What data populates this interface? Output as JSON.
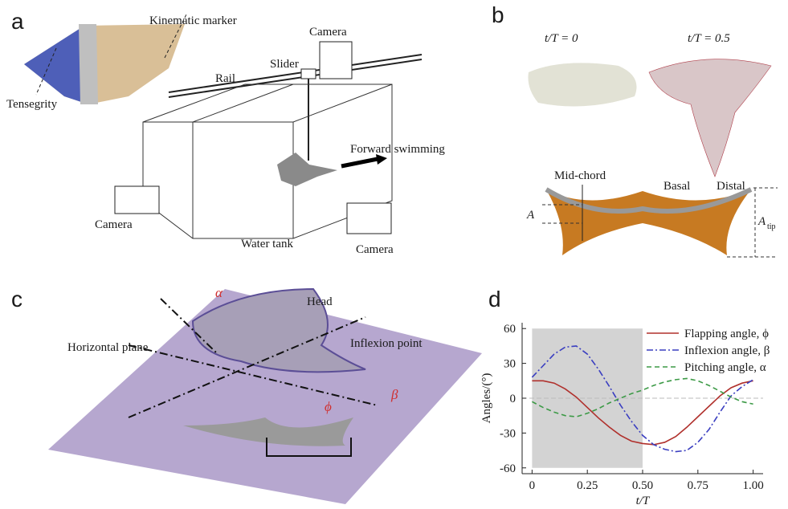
{
  "panels": {
    "a": {
      "label": "a",
      "kinematic_marker": "Kinematic marker",
      "tensegrity": "Tensegrity",
      "camera_top": "Camera",
      "slider": "Slider",
      "rail": "Rail",
      "forward": "Forward swimming",
      "camera_left": "Camera",
      "water_tank": "Water tank",
      "camera_bottom": "Camera"
    },
    "b": {
      "label": "b",
      "t0": "t/T = 0",
      "t05": "t/T = 0.5",
      "mid_chord": "Mid-chord",
      "basal": "Basal",
      "distal": "Distal",
      "a": "A",
      "a_tip": "A",
      "a_tip_sub": "tip"
    },
    "c": {
      "label": "c",
      "alpha": "α",
      "head": "Head",
      "horizontal_plane": "Horizontal plane",
      "inflexion_point": "Inflexion point",
      "phi": "ϕ",
      "beta": "β"
    },
    "d": {
      "label": "d"
    }
  },
  "chart_data": {
    "type": "line",
    "y_label": "Angles/(°)",
    "x_label": "t/T",
    "x": [
      0,
      0.05,
      0.1,
      0.15,
      0.2,
      0.25,
      0.3,
      0.35,
      0.4,
      0.45,
      0.5,
      0.55,
      0.6,
      0.65,
      0.7,
      0.75,
      0.8,
      0.85,
      0.9,
      0.95,
      1
    ],
    "series": [
      {
        "name": "Flapping angle, ϕ",
        "color": "#b0302c",
        "dash": "solid",
        "values": [
          15,
          15,
          13,
          8,
          1,
          -8,
          -17,
          -25,
          -32,
          -37,
          -39,
          -40,
          -38,
          -33,
          -25,
          -16,
          -7,
          2,
          9,
          13,
          15
        ]
      },
      {
        "name": "Inflexion angle, β",
        "color": "#3a3ec0",
        "dash": "dashdot",
        "values": [
          18,
          28,
          38,
          44,
          45,
          38,
          25,
          10,
          -6,
          -20,
          -32,
          -40,
          -44,
          -46,
          -45,
          -38,
          -27,
          -12,
          2,
          10,
          16
        ]
      },
      {
        "name": "Pitching angle, α",
        "color": "#3c9a46",
        "dash": "dashed",
        "values": [
          -3,
          -8,
          -12,
          -15,
          -16,
          -13,
          -9,
          -4,
          0,
          4,
          7,
          11,
          14,
          16,
          17,
          15,
          11,
          6,
          1,
          -3,
          -5
        ]
      }
    ],
    "xlim": [
      -0.045,
      1.045
    ],
    "ylim": [
      -65,
      65
    ],
    "xticks": [
      0,
      0.25,
      {
        "value": 0.5,
        "label": "0.50"
      },
      0.75,
      {
        "value": 1,
        "label": "1.00"
      }
    ],
    "yticks": [
      60,
      30,
      0,
      -30,
      -60
    ],
    "shaded_region": {
      "x": [
        0,
        0.5
      ],
      "y": [
        -60,
        60
      ],
      "color": "#d3d3d3"
    },
    "reference_line": 0,
    "legend": "upper right"
  }
}
